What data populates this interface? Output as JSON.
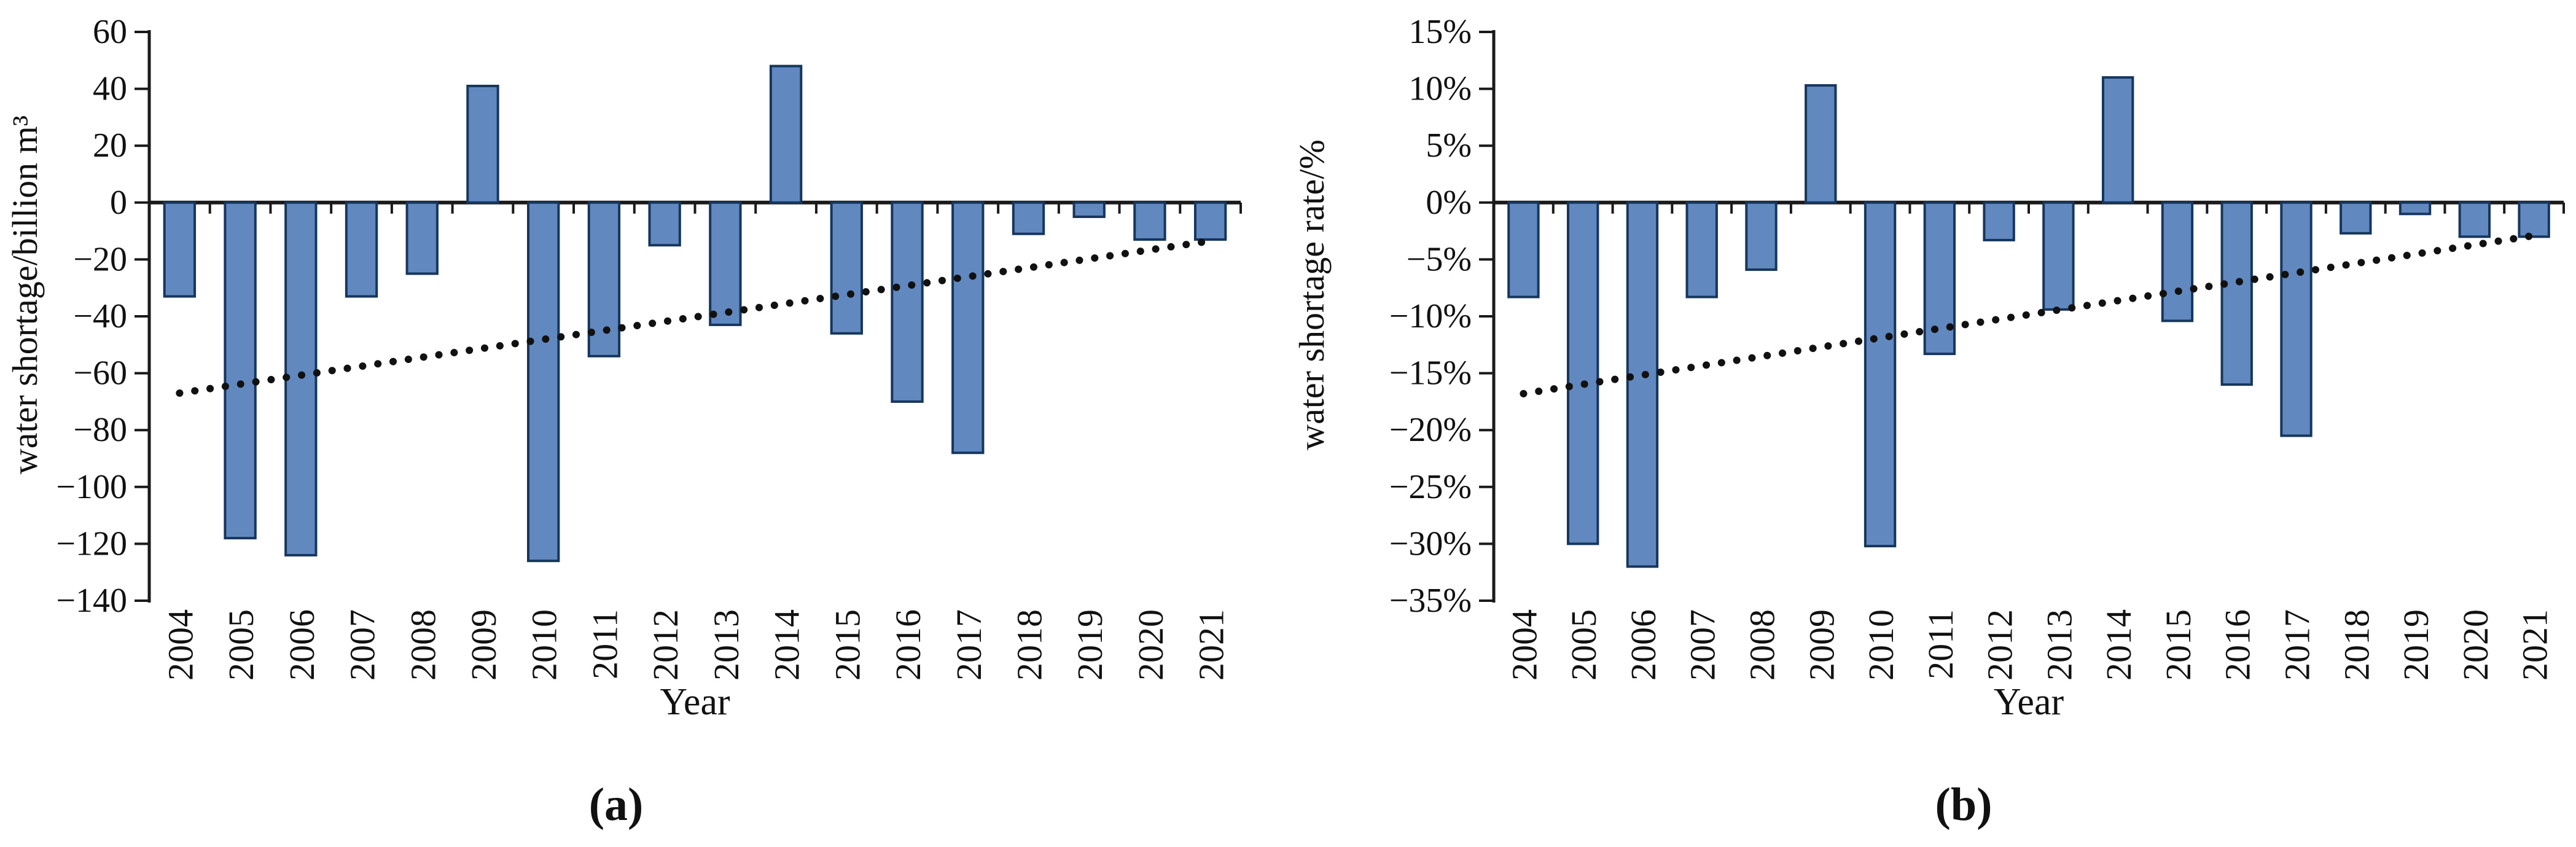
{
  "figure": {
    "background": "#ffffff",
    "colors": {
      "bar_fill": "#6289BF",
      "bar_border": "#17365D",
      "trend": "#111111",
      "axis": "#1a1a1a",
      "text": "#111111"
    }
  },
  "chart_data": [
    {
      "type": "bar",
      "caption": "(a)",
      "ylabel": "water shortage/billion m³",
      "xlabel": "Year",
      "categories": [
        "2004",
        "2005",
        "2006",
        "2007",
        "2008",
        "2009",
        "2010",
        "2011",
        "2012",
        "2013",
        "2014",
        "2015",
        "2016",
        "2017",
        "2018",
        "2019",
        "2020",
        "2021"
      ],
      "values": [
        -33,
        -118,
        -124,
        -33,
        -25,
        41,
        -126,
        -54,
        -15,
        -43,
        48,
        -46,
        -70,
        -88,
        -11,
        -5,
        -13,
        -13
      ],
      "trend": {
        "type": "linear-dotted",
        "start": -67,
        "end": -13.5
      },
      "ylim": [
        -140,
        60
      ],
      "ytick_step": 20,
      "ytick_values": [
        60,
        40,
        20,
        0,
        -20,
        -40,
        -60,
        -80,
        -100,
        -120,
        -140
      ],
      "ytick_labels": [
        "60",
        "40",
        "20",
        "0",
        "−20",
        "−40",
        "−60",
        "−80",
        "−100",
        "−120",
        "−140"
      ],
      "grid": false,
      "legend": "none"
    },
    {
      "type": "bar",
      "caption": "(b)",
      "ylabel": "water shortage rate/%",
      "xlabel": "Year",
      "categories": [
        "2004",
        "2005",
        "2006",
        "2007",
        "2008",
        "2009",
        "2010",
        "2011",
        "2012",
        "2013",
        "2014",
        "2015",
        "2016",
        "2017",
        "2018",
        "2019",
        "2020",
        "2021"
      ],
      "values": [
        -8.3,
        -30,
        -32,
        -8.3,
        -5.9,
        10.3,
        -30.2,
        -13.3,
        -3.3,
        -9.4,
        11,
        -10.4,
        -16,
        -20.5,
        -2.7,
        -1,
        -3,
        -3
      ],
      "trend": {
        "type": "linear-dotted",
        "start": -16.8,
        "end": -2.9
      },
      "ylim": [
        -35,
        15
      ],
      "ytick_step": 5,
      "ytick_values": [
        15,
        10,
        5,
        0,
        -5,
        -10,
        -15,
        -20,
        -25,
        -30,
        -35
      ],
      "ytick_labels": [
        "15%",
        "10%",
        "5%",
        "0%",
        "−5%",
        "−10%",
        "−15%",
        "−20%",
        "−25%",
        "−30%",
        "−35%"
      ],
      "grid": false,
      "legend": "none"
    }
  ]
}
